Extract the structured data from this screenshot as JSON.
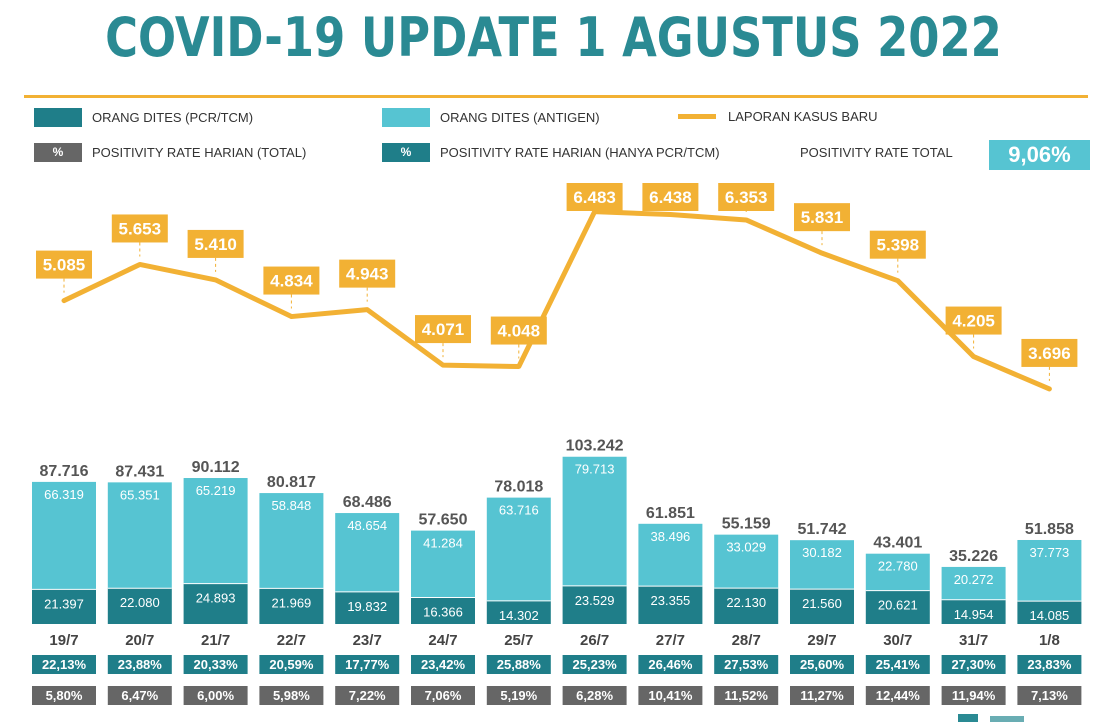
{
  "title": "COVID-19 UPDATE 1 AGUSTUS 2022",
  "legend": {
    "pcr": "ORANG DITES (PCR/TCM)",
    "antigen": "ORANG DITES (ANTIGEN)",
    "cases": "LAPORAN KASUS BARU",
    "pct_symbol": "%",
    "positivity_total": "POSITIVITY RATE HARIAN (TOTAL)",
    "positivity_pcr": "POSITIVITY RATE HARIAN (HANYA PCR/TCM)",
    "overall_label": "POSITIVITY RATE TOTAL",
    "overall_value": "9,06%"
  },
  "colors": {
    "title": "#2a8a93",
    "pcr": "#1f7e89",
    "antigen": "#56c4d2",
    "cases": "#f2b134",
    "gray": "#666666"
  },
  "chart_data": {
    "type": "bar",
    "title": "COVID-19 UPDATE 1 AGUSTUS 2022",
    "categories": [
      "19/7",
      "20/7",
      "21/7",
      "22/7",
      "23/7",
      "24/7",
      "25/7",
      "26/7",
      "27/7",
      "28/7",
      "29/7",
      "30/7",
      "31/7",
      "1/8"
    ],
    "series": [
      {
        "name": "ORANG DITES (PCR/TCM)",
        "type": "bar",
        "values": [
          21397,
          22080,
          24893,
          21969,
          19832,
          16366,
          14302,
          23529,
          23355,
          22130,
          21560,
          20621,
          14954,
          14085
        ],
        "labels": [
          "21.397",
          "22.080",
          "24.893",
          "21.969",
          "19.832",
          "16.366",
          "14.302",
          "23.529",
          "23.355",
          "22.130",
          "21.560",
          "20.621",
          "14.954",
          "14.085"
        ]
      },
      {
        "name": "ORANG DITES (ANTIGEN)",
        "type": "bar",
        "values": [
          66319,
          65351,
          65219,
          58848,
          48654,
          41284,
          63716,
          79713,
          38496,
          33029,
          30182,
          22780,
          20272,
          37773
        ],
        "labels": [
          "66.319",
          "65.351",
          "65.219",
          "58.848",
          "48.654",
          "41.284",
          "63.716",
          "79.713",
          "38.496",
          "33.029",
          "30.182",
          "22.780",
          "20.272",
          "37.773"
        ]
      },
      {
        "name": "LAPORAN KASUS BARU",
        "type": "line",
        "values": [
          5085,
          5653,
          5410,
          4834,
          4943,
          4071,
          4048,
          6483,
          6438,
          6353,
          5831,
          5398,
          4205,
          3696
        ],
        "labels": [
          "5.085",
          "5.653",
          "5.410",
          "4.834",
          "4.943",
          "4.071",
          "4.048",
          "6.483",
          "6.438",
          "6.353",
          "5.831",
          "5.398",
          "4.205",
          "3.696"
        ]
      }
    ],
    "totals": [
      "87.716",
      "87.431",
      "90.112",
      "80.817",
      "68.486",
      "57.650",
      "78.018",
      "103.242",
      "61.851",
      "55.159",
      "51.742",
      "43.401",
      "35.226",
      "51.858"
    ],
    "positivity_pcr": [
      "22,13%",
      "23,88%",
      "20,33%",
      "20,59%",
      "17,77%",
      "23,42%",
      "25,88%",
      "25,23%",
      "26,46%",
      "27,53%",
      "25,60%",
      "25,41%",
      "27,30%",
      "23,83%"
    ],
    "positivity_total": [
      "5,80%",
      "6,47%",
      "6,00%",
      "5,98%",
      "7,22%",
      "7,06%",
      "5,19%",
      "6,28%",
      "10,41%",
      "11,52%",
      "11,27%",
      "12,44%",
      "11,94%",
      "7,13%"
    ],
    "xlabel": "",
    "ylabel": ""
  }
}
